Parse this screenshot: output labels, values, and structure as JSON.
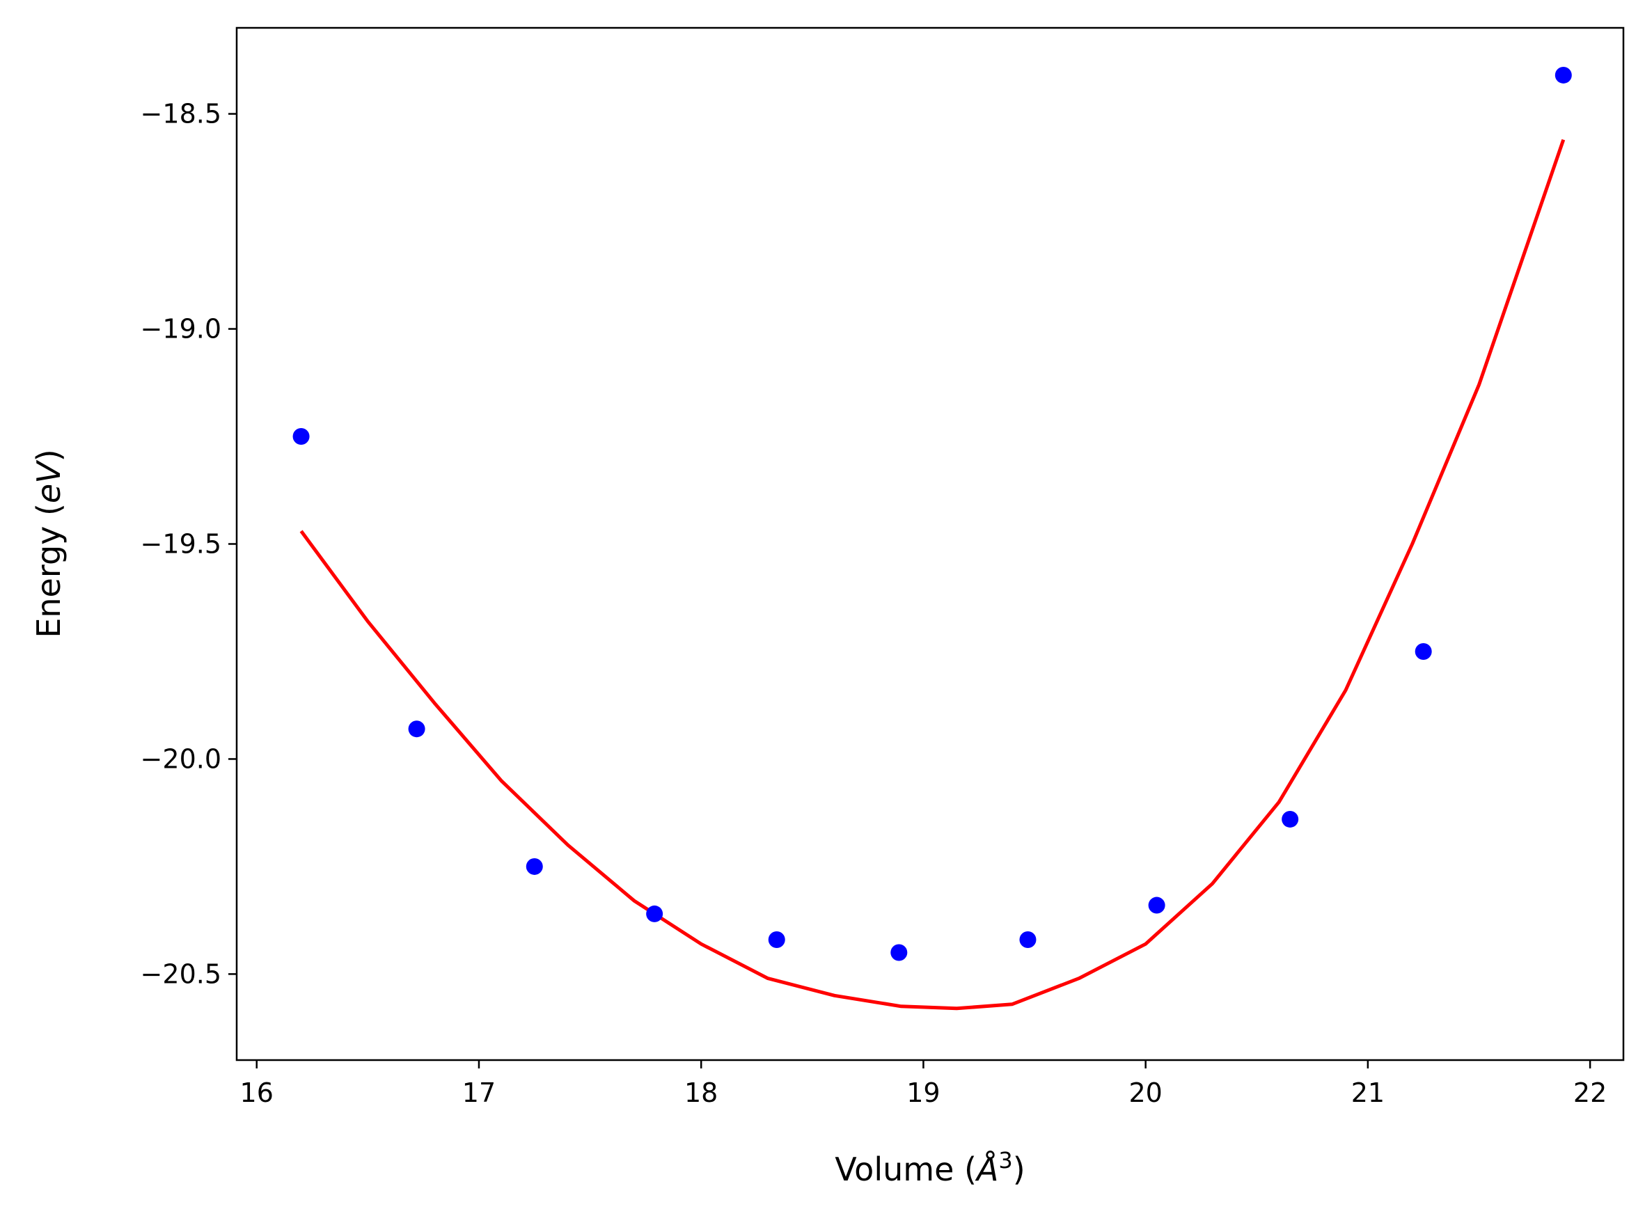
{
  "chart_data": {
    "type": "scatter",
    "title": "",
    "xlabel_main": "Volume (",
    "xlabel_var": "Å",
    "xlabel_sup": "3",
    "xlabel_end": ")",
    "ylabel_main": "Energy (",
    "ylabel_var": "eV",
    "ylabel_end": ")",
    "xlim": [
      15.91,
      22.15
    ],
    "ylim": [
      -20.7,
      -18.3
    ],
    "xticks": [
      16,
      17,
      18,
      19,
      20,
      21,
      22
    ],
    "xtick_labels": [
      "16",
      "17",
      "18",
      "19",
      "20",
      "21",
      "22"
    ],
    "yticks": [
      -18.5,
      -19.0,
      -19.5,
      -20.0,
      -20.5
    ],
    "ytick_labels": [
      "−18.5",
      "−19.0",
      "−19.5",
      "−20.0",
      "−20.5"
    ],
    "grid": false,
    "series": [
      {
        "kind": "scatter",
        "color": "#0000ff",
        "x": [
          16.2,
          16.72,
          17.25,
          17.79,
          18.34,
          18.89,
          19.47,
          20.05,
          20.65,
          21.25,
          21.88
        ],
        "y": [
          -19.25,
          -19.93,
          -20.25,
          -20.36,
          -20.42,
          -20.45,
          -20.42,
          -20.34,
          -20.14,
          -19.75,
          -18.41
        ]
      },
      {
        "kind": "line",
        "color": "#ff0000",
        "x": [
          16.2,
          16.5,
          16.8,
          17.1,
          17.4,
          17.7,
          18.0,
          18.3,
          18.6,
          18.9,
          19.15,
          19.4,
          19.7,
          20.0,
          20.3,
          20.6,
          20.9,
          21.2,
          21.5,
          21.88
        ],
        "y": [
          -19.47,
          -19.68,
          -19.87,
          -20.05,
          -20.2,
          -20.33,
          -20.43,
          -20.51,
          -20.55,
          -20.575,
          -20.58,
          -20.57,
          -20.51,
          -20.43,
          -20.29,
          -20.1,
          -19.84,
          -19.5,
          -19.13,
          -18.56
        ]
      }
    ]
  }
}
